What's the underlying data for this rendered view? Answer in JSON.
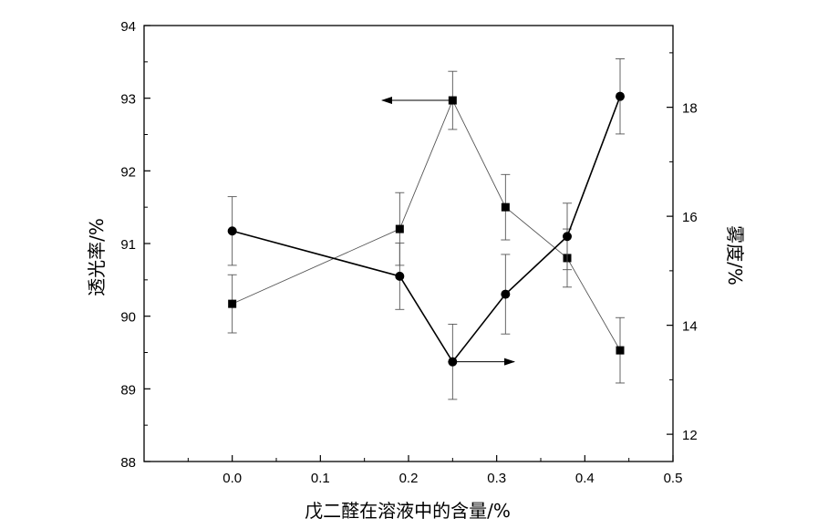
{
  "chart_data": {
    "type": "line",
    "xlabel": "戊二醛在溶液中的含量/%",
    "ylabel_left": "透光率/%",
    "ylabel_right": "雾度/%",
    "xlim": [
      -0.1,
      0.5
    ],
    "ylim_left": [
      88,
      94
    ],
    "ylim_right": [
      11.5,
      19.5
    ],
    "x_ticks": [
      0.0,
      0.1,
      0.2,
      0.3,
      0.4,
      0.5
    ],
    "x_tick_labels": [
      "0.0",
      "0.1",
      "0.2",
      "0.3",
      "0.4",
      "0.5"
    ],
    "y_left_ticks": [
      88,
      89,
      90,
      91,
      92,
      93,
      94
    ],
    "y_left_tick_labels": [
      "88",
      "89",
      "90",
      "91",
      "92",
      "93",
      "94"
    ],
    "y_right_ticks": [
      12,
      14,
      16,
      18
    ],
    "y_right_tick_labels": [
      "12",
      "14",
      "16",
      "18"
    ],
    "grid": false,
    "series": [
      {
        "marker": "square",
        "axis": "left",
        "line_color": "#555555",
        "x": [
          0.0,
          0.19,
          0.25,
          0.31,
          0.38,
          0.44
        ],
        "y": [
          90.17,
          91.2,
          92.97,
          91.5,
          90.8,
          89.53
        ],
        "err": [
          0.4,
          0.5,
          0.4,
          0.45,
          0.4,
          0.45
        ]
      },
      {
        "marker": "circle",
        "axis": "right",
        "line_color": "#000000",
        "x": [
          0.0,
          0.19,
          0.25,
          0.31,
          0.38,
          0.44
        ],
        "y": [
          15.73,
          14.9,
          13.33,
          14.57,
          15.63,
          18.2
        ],
        "err": [
          0.63,
          0.61,
          0.69,
          0.73,
          0.61,
          0.69
        ]
      }
    ],
    "annotations": [
      {
        "type": "arrow",
        "direction": "left",
        "points_to_axis": "left",
        "x_from": 0.25,
        "x_to": 0.17,
        "y": 92.97,
        "axis": "left"
      },
      {
        "type": "arrow",
        "direction": "right",
        "points_to_axis": "right",
        "x_from": 0.25,
        "x_to": 0.32,
        "y": 13.33,
        "axis": "right"
      }
    ]
  }
}
